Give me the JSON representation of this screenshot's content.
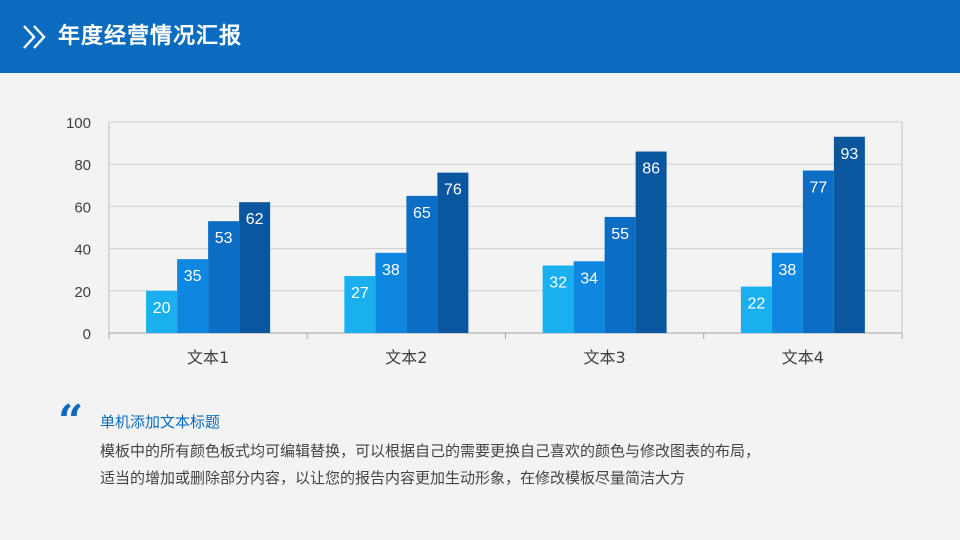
{
  "header": {
    "title": "年度经营情况汇报",
    "background": "#0a6bbf",
    "icon": "double-chevron-right-icon"
  },
  "chart_data": {
    "type": "bar",
    "categories": [
      "文本1",
      "文本2",
      "文本3",
      "文本4"
    ],
    "series": [
      {
        "values": [
          20,
          27,
          32,
          22
        ],
        "color": "#1ab0ef"
      },
      {
        "values": [
          35,
          38,
          34,
          38
        ],
        "color": "#0f86e0"
      },
      {
        "values": [
          53,
          65,
          55,
          77
        ],
        "color": "#0b6dc4"
      },
      {
        "values": [
          62,
          76,
          86,
          93
        ],
        "color": "#0a57a0"
      }
    ],
    "ylim": [
      0,
      100
    ],
    "yticks": [
      "0",
      "20",
      "40",
      "60",
      "80",
      "100"
    ],
    "grid": true,
    "data_labels": true
  },
  "note": {
    "icon": "quote-icon",
    "title": "单机添加文本标题",
    "lines": [
      "模板中的所有颜色板式均可编辑替换，可以根据自己的需要更换自己喜欢的颜色与修改图表的布局，",
      "适当的增加或删除部分内容，以让您的报告内容更加生动形象，在修改模板尽量简洁大方"
    ]
  }
}
